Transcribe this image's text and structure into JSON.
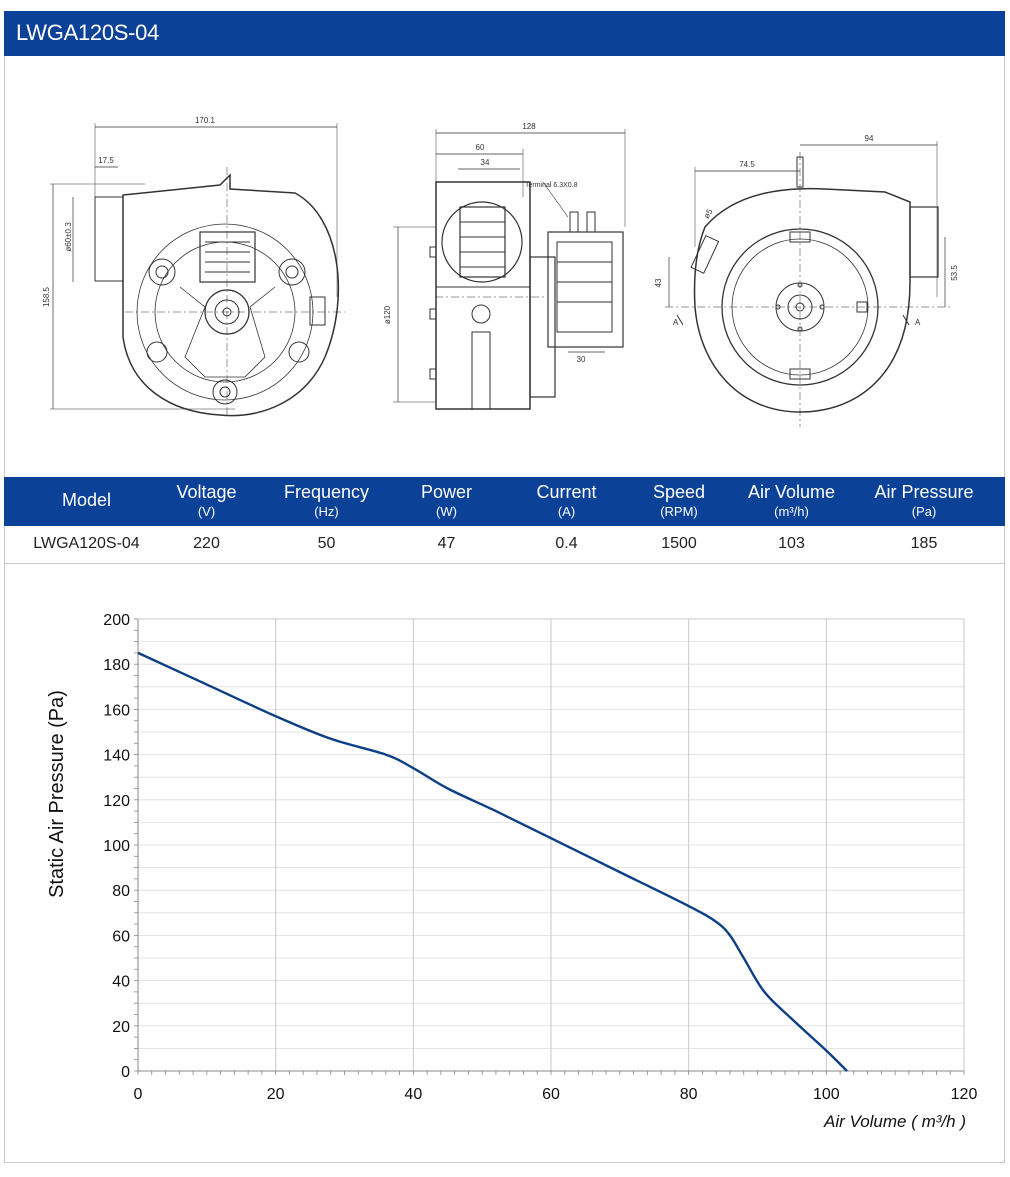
{
  "header": {
    "title": "LWGA120S-04"
  },
  "drawings": {
    "front": {
      "dims": [
        "170.1",
        "17.5",
        "ø60±0.3",
        "158.5"
      ]
    },
    "side": {
      "dims": [
        "128",
        "60",
        "34",
        "ø120",
        "30"
      ],
      "note": "Terminal 6.3X0.8"
    },
    "rear": {
      "dims": [
        "94",
        "74.5",
        "ø5",
        "43",
        "53.5",
        "A",
        "A"
      ]
    }
  },
  "specs": {
    "columns": [
      {
        "name": "Model",
        "unit": ""
      },
      {
        "name": "Voltage",
        "unit": "(V)"
      },
      {
        "name": "Frequency",
        "unit": "(Hz)"
      },
      {
        "name": "Power",
        "unit": "(W)"
      },
      {
        "name": "Current",
        "unit": "(A)"
      },
      {
        "name": "Speed",
        "unit": "(RPM)"
      },
      {
        "name": "Air Volume",
        "unit": "(m³/h)"
      },
      {
        "name": "Air Pressure",
        "unit": "(Pa)"
      }
    ],
    "row": [
      "LWGA120S-04",
      "220",
      "50",
      "47",
      "0.4",
      "1500",
      "103",
      "185"
    ]
  },
  "colors": {
    "brand": "#0b4196",
    "curve": "#0d3f86",
    "grid": "#c8c8c8"
  },
  "chart_data": {
    "type": "line",
    "xlabel": "Air Volume ( m³/h )",
    "ylabel": "Static Air Pressure  (Pa)",
    "xlim": [
      0,
      120
    ],
    "ylim": [
      0,
      200
    ],
    "xticks": [
      0,
      20,
      40,
      60,
      80,
      100,
      120
    ],
    "yticks": [
      0,
      20,
      40,
      60,
      80,
      100,
      120,
      140,
      160,
      180,
      200
    ],
    "grid": true,
    "series": [
      {
        "x": [
          0,
          10,
          20,
          28,
          36,
          40,
          45,
          52,
          60,
          70,
          80,
          84,
          86,
          88,
          91,
          95,
          100,
          103
        ],
        "y": [
          185,
          171,
          157,
          147,
          140,
          134,
          125,
          115,
          103,
          88,
          73,
          66,
          60,
          50,
          35,
          23,
          9,
          0
        ]
      }
    ]
  }
}
